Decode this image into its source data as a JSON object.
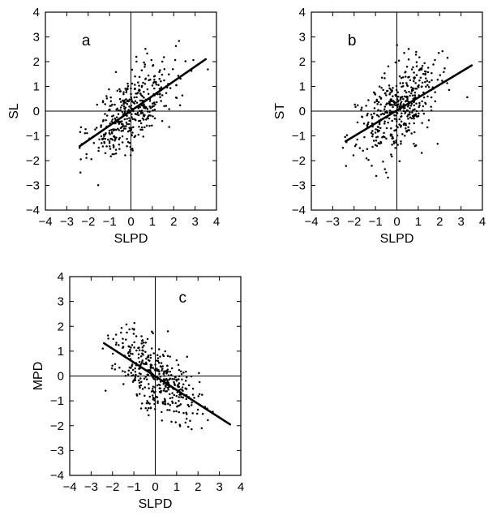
{
  "chart_data": [
    {
      "type": "scatter",
      "panel_label": "a",
      "xlabel": "SLPD",
      "ylabel": "SL",
      "xlim": [
        -4,
        4
      ],
      "ylim": [
        -4,
        4
      ],
      "xticks": [
        "−4",
        "−3",
        "−2",
        "−1",
        "0",
        "1",
        "2",
        "3",
        "4"
      ],
      "yticks": [
        "4",
        "3",
        "2",
        "1",
        "0",
        "−1",
        "−2",
        "−3",
        "−4"
      ],
      "grid": false,
      "reference_lines": {
        "x": 0,
        "y": 0
      },
      "fit_line": [
        [
          -2.4,
          -1.42
        ],
        [
          3.5,
          2.1
        ]
      ],
      "point_seed": 11,
      "point_count": 420,
      "slope": 0.6,
      "intercept": 0.0,
      "noise": 0.75
    },
    {
      "type": "scatter",
      "panel_label": "b",
      "xlabel": "SLPD",
      "ylabel": "ST",
      "xlim": [
        -4,
        4
      ],
      "ylim": [
        -4,
        4
      ],
      "xticks": [
        "−4",
        "−3",
        "−2",
        "−1",
        "0",
        "1",
        "2",
        "3",
        "4"
      ],
      "yticks": [
        "4",
        "3",
        "2",
        "1",
        "0",
        "−1",
        "−2",
        "−3",
        "−4"
      ],
      "grid": false,
      "reference_lines": {
        "x": 0,
        "y": 0
      },
      "fit_line": [
        [
          -2.4,
          -1.22
        ],
        [
          3.5,
          1.85
        ]
      ],
      "point_seed": 23,
      "point_count": 430,
      "slope": 0.52,
      "intercept": 0.05,
      "noise": 0.85
    },
    {
      "type": "scatter",
      "panel_label": "c",
      "xlabel": "SLPD",
      "ylabel": "MPD",
      "xlim": [
        -4,
        4
      ],
      "ylim": [
        -4,
        4
      ],
      "xticks": [
        "−4",
        "−3",
        "−2",
        "−1",
        "0",
        "1",
        "2",
        "3",
        "4"
      ],
      "yticks": [
        "4",
        "3",
        "2",
        "1",
        "0",
        "−1",
        "−2",
        "−3",
        "−4"
      ],
      "grid": false,
      "reference_lines": {
        "x": 0,
        "y": 0
      },
      "fit_line": [
        [
          -2.4,
          1.32
        ],
        [
          3.5,
          -1.95
        ]
      ],
      "point_seed": 37,
      "point_count": 400,
      "slope": -0.55,
      "intercept": 0.0,
      "noise": 0.7
    }
  ]
}
